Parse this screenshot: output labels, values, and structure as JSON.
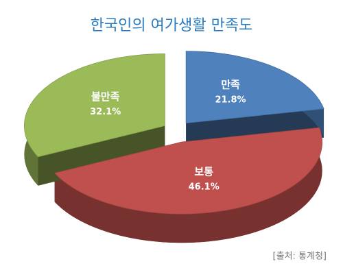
{
  "chart_data": {
    "type": "pie",
    "title": "한국인의 여가생활 만족도",
    "categories": [
      "만족",
      "보통",
      "불만족"
    ],
    "values": [
      21.8,
      46.1,
      32.1
    ],
    "value_labels": [
      "21.8%",
      "46.1%",
      "32.1%"
    ],
    "colors": [
      "#4f81bd",
      "#c0504d",
      "#9bbb59"
    ],
    "source": "[출처: 통계청]"
  }
}
